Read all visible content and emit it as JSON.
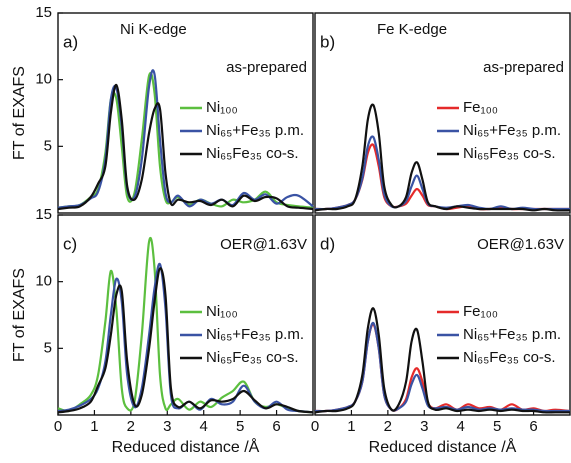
{
  "chart_data": [
    {
      "type": "line",
      "panel_label": "a)",
      "title": "Ni K-edge",
      "annotation": "as-prepared",
      "ylabel": "FT of EXAFS",
      "x": [
        0,
        0.3,
        0.6,
        0.9,
        1.1,
        1.3,
        1.45,
        1.6,
        1.75,
        1.9,
        2.1,
        2.3,
        2.5,
        2.65,
        2.8,
        2.95,
        3.1,
        3.3,
        3.6,
        3.9,
        4.2,
        4.5,
        4.8,
        5.1,
        5.4,
        5.7,
        6.0,
        6.3,
        6.6,
        7.0
      ],
      "xlim": [
        0,
        7
      ],
      "ylim": [
        0,
        15
      ],
      "yticks": [
        5,
        10,
        15
      ],
      "legend": "right",
      "series": [
        {
          "name": "Ni₁₀₀",
          "color": "#5cbf3f",
          "values": [
            0.4,
            0.5,
            0.6,
            1.2,
            1.8,
            4.5,
            8.5,
            8.6,
            5,
            1.2,
            1.5,
            5.5,
            10.3,
            9,
            3.5,
            1,
            0.8,
            1.2,
            0.6,
            1,
            0.7,
            0.5,
            1,
            0.8,
            1,
            1.6,
            0.8,
            0.6,
            0.5,
            0.4
          ]
        },
        {
          "name": "Ni₆₅+Fe₃₅ p.m.",
          "color": "#3a53a4",
          "values": [
            0.4,
            0.5,
            0.6,
            1.1,
            1.6,
            4,
            8.5,
            9.4,
            6.5,
            1.8,
            1.2,
            4,
            9.5,
            10.4,
            5.5,
            1.5,
            0.8,
            1.3,
            0.5,
            1,
            0.7,
            1,
            0.6,
            1.5,
            1,
            1.4,
            0.7,
            1.2,
            1.3,
            0.5
          ]
        },
        {
          "name": "Ni₆₅Fe₃₅ co-s.",
          "color": "#111111",
          "values": [
            0.3,
            0.4,
            0.5,
            1.2,
            2.2,
            3.5,
            7.5,
            9.6,
            7,
            2,
            1,
            2.5,
            6,
            7.8,
            7.8,
            3,
            0.7,
            1,
            0.8,
            0.9,
            0.6,
            1,
            0.5,
            1.3,
            0.9,
            1.2,
            1.1,
            0.5,
            0.4,
            0.3
          ]
        }
      ]
    },
    {
      "type": "line",
      "panel_label": "b)",
      "title": "Fe K-edge",
      "annotation": "as-prepared",
      "x": [
        0,
        0.3,
        0.6,
        0.9,
        1.1,
        1.3,
        1.45,
        1.6,
        1.75,
        1.9,
        2.1,
        2.3,
        2.5,
        2.65,
        2.8,
        2.95,
        3.1,
        3.3,
        3.6,
        3.9,
        4.2,
        4.5,
        4.8,
        5.1,
        5.4,
        5.7,
        6.0,
        6.3,
        6.6,
        7.0
      ],
      "xlim": [
        0,
        7
      ],
      "ylim": [
        0,
        15
      ],
      "legend": "right",
      "series": [
        {
          "name": "Fe₁₀₀",
          "color": "#e52a2a",
          "values": [
            0.3,
            0.3,
            0.4,
            0.6,
            1,
            2.5,
            4.5,
            5.1,
            3.5,
            1.2,
            0.5,
            0.5,
            0.7,
            1.3,
            1.8,
            1.3,
            0.6,
            0.5,
            0.3,
            0.4,
            0.5,
            0.3,
            0.3,
            0.4,
            0.3,
            0.3,
            0.3,
            0.3,
            0.3,
            0.3
          ]
        },
        {
          "name": "Ni₆₅+Fe₃₅ p.m.",
          "color": "#3a53a4",
          "values": [
            0.3,
            0.3,
            0.4,
            0.6,
            1,
            2.6,
            5,
            5.7,
            4,
            1.4,
            0.5,
            0.5,
            0.9,
            2,
            2.8,
            1.8,
            0.7,
            0.5,
            0.4,
            0.5,
            0.6,
            0.4,
            0.3,
            0.5,
            0.3,
            0.4,
            0.3,
            0.3,
            0.3,
            0.3
          ]
        },
        {
          "name": "Ni₆₅Fe₃₅ co-s.",
          "color": "#111111",
          "values": [
            0.2,
            0.3,
            0.3,
            0.5,
            1,
            3.5,
            7,
            8.1,
            6,
            2,
            0.6,
            0.5,
            1.2,
            3,
            3.8,
            2.5,
            0.8,
            0.5,
            0.3,
            0.5,
            0.4,
            0.3,
            0.3,
            0.3,
            0.3,
            0.3,
            0.2,
            0.3,
            0.2,
            0.2
          ]
        }
      ]
    },
    {
      "type": "line",
      "panel_label": "c)",
      "annotation": "OER@1.63V",
      "ylabel": "FT of EXAFS",
      "xlabel": "Reduced distance /Å",
      "x": [
        0,
        0.3,
        0.6,
        0.9,
        1.1,
        1.3,
        1.45,
        1.6,
        1.75,
        1.9,
        2.1,
        2.3,
        2.5,
        2.65,
        2.8,
        2.95,
        3.1,
        3.3,
        3.6,
        3.9,
        4.2,
        4.5,
        4.8,
        5.1,
        5.4,
        5.7,
        6.0,
        6.3,
        6.6,
        7.0
      ],
      "xlim": [
        0,
        7
      ],
      "xticks": [
        0,
        1,
        2,
        3,
        4,
        5,
        6
      ],
      "ylim": [
        0,
        15
      ],
      "yticks": [
        5,
        10,
        15
      ],
      "legend": "right",
      "series": [
        {
          "name": "Ni₁₀₀",
          "color": "#5cbf3f",
          "values": [
            0.5,
            0.3,
            0.8,
            1.5,
            3,
            7,
            10.8,
            8,
            2,
            0.5,
            1,
            6,
            13,
            11,
            3,
            0.5,
            0.8,
            1.2,
            0.4,
            1,
            0.6,
            1.3,
            1.8,
            2.5,
            1,
            0.6,
            0.8,
            0.5,
            0.3,
            0.2
          ]
        },
        {
          "name": "Ni₆₅+Fe₃₅ p.m.",
          "color": "#3a53a4",
          "values": [
            0.3,
            0.4,
            0.7,
            1.2,
            2,
            4,
            7.5,
            10.2,
            8.5,
            3,
            0.6,
            2,
            6,
            9.5,
            11.3,
            8,
            1.5,
            0.5,
            1,
            0.4,
            1.2,
            0.8,
            1,
            2.2,
            1,
            0.5,
            1,
            0.4,
            0.3,
            0.2
          ]
        },
        {
          "name": "Ni₆₅Fe₃₅ co-s.",
          "color": "#111111",
          "values": [
            0.2,
            0.3,
            0.5,
            1,
            2.2,
            3.5,
            6,
            9,
            9.3,
            4,
            0.8,
            1.5,
            5,
            8.5,
            11,
            9,
            2,
            0.6,
            1,
            0.5,
            1.1,
            1,
            1.2,
            1.8,
            1.1,
            0.5,
            0.8,
            0.6,
            0.3,
            0.2
          ]
        }
      ]
    },
    {
      "type": "line",
      "panel_label": "d)",
      "annotation": "OER@1.63V",
      "xlabel": "Reduced distance /Å",
      "x": [
        0,
        0.3,
        0.6,
        0.9,
        1.1,
        1.3,
        1.45,
        1.6,
        1.75,
        1.9,
        2.1,
        2.3,
        2.5,
        2.65,
        2.8,
        2.95,
        3.1,
        3.3,
        3.6,
        3.9,
        4.2,
        4.5,
        4.8,
        5.1,
        5.4,
        5.7,
        6.0,
        6.3,
        6.6,
        7.0
      ],
      "xlim": [
        0,
        7
      ],
      "xticks": [
        0,
        1,
        2,
        3,
        4,
        5,
        6
      ],
      "ylim": [
        0,
        15
      ],
      "legend": "right",
      "series": [
        {
          "name": "Fe₁₀₀",
          "color": "#e52a2a",
          "values": [
            0.3,
            0.3,
            0.4,
            0.6,
            1,
            2.5,
            5.5,
            6.8,
            5,
            1.5,
            0.4,
            0.5,
            1.2,
            2.8,
            3.5,
            2.5,
            0.9,
            0.5,
            0.8,
            0.4,
            0.8,
            0.5,
            0.6,
            0.4,
            0.8,
            0.4,
            0.5,
            0.3,
            0.4,
            0.3
          ]
        },
        {
          "name": "Ni₆₅+Fe₃₅ p.m.",
          "color": "#3a53a4",
          "values": [
            0.3,
            0.3,
            0.4,
            0.6,
            1,
            2.5,
            5.5,
            6.9,
            5,
            1.5,
            0.4,
            0.5,
            1,
            2.3,
            3,
            2,
            0.7,
            0.5,
            0.6,
            0.4,
            0.6,
            0.4,
            0.5,
            0.4,
            0.5,
            0.4,
            0.4,
            0.3,
            0.3,
            0.3
          ]
        },
        {
          "name": "Ni₆₅Fe₃₅ co-s.",
          "color": "#111111",
          "values": [
            0.2,
            0.3,
            0.3,
            0.5,
            1,
            3,
            6.5,
            8,
            6,
            2,
            0.4,
            0.8,
            2.5,
            5.5,
            6.4,
            4,
            1,
            0.4,
            0.5,
            0.3,
            0.4,
            0.3,
            0.4,
            0.3,
            0.4,
            0.3,
            0.3,
            0.2,
            0.2,
            0.2
          ]
        }
      ]
    }
  ]
}
